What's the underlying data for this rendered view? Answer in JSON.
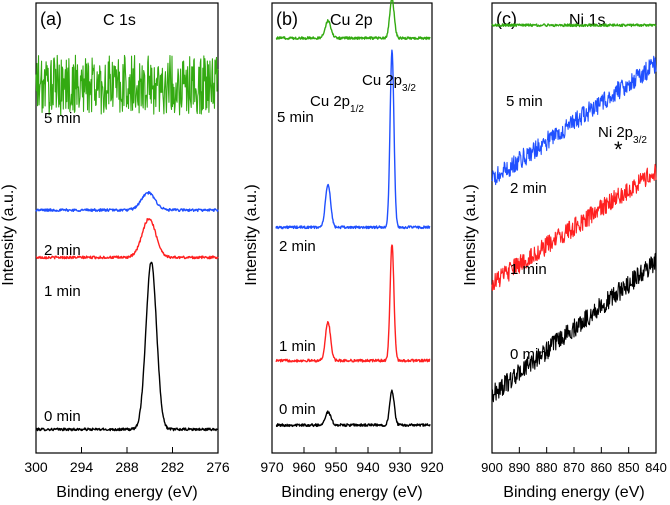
{
  "figure": {
    "y_label": "Intensity (a.u.)",
    "x_label": "Binding energy (eV)"
  },
  "colors": {
    "0 min": "#000000",
    "1 min": "#ff2020",
    "2 min": "#2050ff",
    "5 min": "#33aa11"
  },
  "chart_data": [
    {
      "type": "line",
      "panel": "(a)",
      "title": "C 1s",
      "xlabel": "Binding energy (eV)",
      "ylabel": "Intensity (a.u.)",
      "xlim": [
        300,
        276
      ],
      "ylim": [
        0,
        100
      ],
      "xticks": [
        300,
        294,
        288,
        282,
        276
      ],
      "series": [
        {
          "name": "0 min",
          "label": "0 min",
          "baseline": 2,
          "noise": 0.3,
          "peaks": [
            {
              "center": 284.8,
              "height": 39,
              "width": 0.7
            }
          ]
        },
        {
          "name": "1 min",
          "label": "1 min",
          "baseline": 42,
          "noise": 0.3,
          "peaks": [
            {
              "center": 285.1,
              "height": 9,
              "width": 0.9
            }
          ]
        },
        {
          "name": "2 min",
          "label": "2 min",
          "baseline": 53,
          "noise": 0.3,
          "peaks": [
            {
              "center": 285.2,
              "height": 4,
              "width": 0.9
            }
          ]
        },
        {
          "name": "5 min",
          "label": "5 min",
          "baseline": 82,
          "noise": 7,
          "peaks": []
        }
      ]
    },
    {
      "type": "line",
      "panel": "(b)",
      "title": "Cu 2p",
      "xlabel": "Binding energy (eV)",
      "ylabel": "Intensity (a.u.)",
      "xlim": [
        970,
        920
      ],
      "ylim": [
        0,
        100
      ],
      "xticks": [
        970,
        960,
        950,
        940,
        930,
        920
      ],
      "annotations": [
        {
          "text": "Cu 2p",
          "sub": "1/2",
          "x": 952.5
        },
        {
          "text": "Cu 2p",
          "sub": "3/2",
          "x": 932.5
        }
      ],
      "series": [
        {
          "name": "0 min",
          "label": "0 min",
          "baseline": 3,
          "noise": 0.3,
          "peaks": [
            {
              "center": 952.5,
              "height": 3,
              "width": 0.9
            },
            {
              "center": 932.5,
              "height": 8,
              "width": 0.7
            }
          ]
        },
        {
          "name": "1 min",
          "label": "1 min",
          "baseline": 18,
          "noise": 0.3,
          "peaks": [
            {
              "center": 952.5,
              "height": 9,
              "width": 0.8
            },
            {
              "center": 932.5,
              "height": 27,
              "width": 0.6
            }
          ]
        },
        {
          "name": "2 min",
          "label": "2 min",
          "baseline": 49,
          "noise": 0.3,
          "peaks": [
            {
              "center": 952.5,
              "height": 10,
              "width": 0.8
            },
            {
              "center": 932.5,
              "height": 41,
              "width": 0.6
            }
          ]
        },
        {
          "name": "5 min",
          "label": "5 min",
          "baseline": 93,
          "noise": 0.3,
          "peaks": [
            {
              "center": 952.5,
              "height": 4,
              "width": 0.9
            },
            {
              "center": 932.5,
              "height": 9,
              "width": 0.7
            }
          ]
        }
      ]
    },
    {
      "type": "line",
      "panel": "(c)",
      "title": "Ni 1s",
      "xlabel": "Binding energy (eV)",
      "ylabel": "Intensity (a.u.)",
      "xlim": [
        900,
        840
      ],
      "ylim": [
        0,
        100
      ],
      "xticks": [
        900,
        890,
        880,
        870,
        860,
        850,
        840
      ],
      "annotations": [
        {
          "text": "Ni 2p",
          "sub": "3/2",
          "marker": "*",
          "x": 852.5
        }
      ],
      "series": [
        {
          "name": "0 min",
          "label": "0 min",
          "start": 10,
          "end": 41,
          "noise": 2.2
        },
        {
          "name": "1 min",
          "label": "1 min",
          "start": 36,
          "end": 62,
          "noise": 2.2
        },
        {
          "name": "2 min",
          "label": "2 min",
          "start": 60,
          "end": 87,
          "noise": 2.2
        },
        {
          "name": "5 min",
          "label": "5 min",
          "start": 96,
          "end": 96,
          "noise": 0.3
        }
      ]
    }
  ]
}
